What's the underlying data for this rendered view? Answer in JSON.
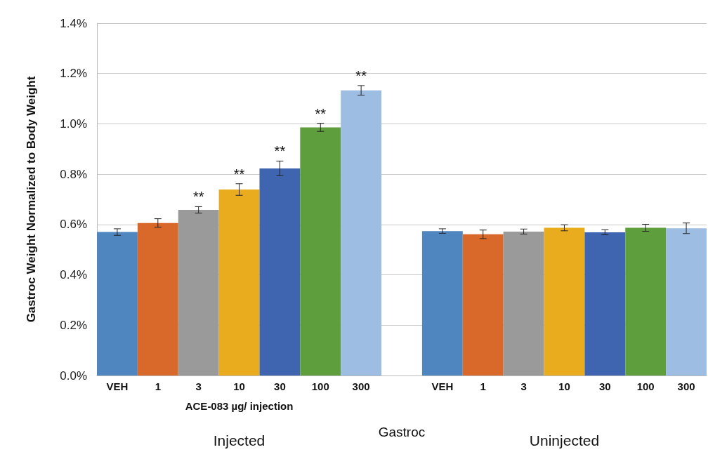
{
  "chart_data": {
    "type": "bar",
    "ylabel": "Gastroc Weight Normalized to Body Weight",
    "xlabel": "ACE-083 µg/ injection",
    "categories": [
      "VEH",
      "1",
      "3",
      "10",
      "30",
      "100",
      "300",
      null,
      "VEH",
      "1",
      "3",
      "10",
      "30",
      "100",
      "300"
    ],
    "values": [
      0.57,
      0.606,
      0.658,
      0.739,
      0.823,
      0.986,
      1.133,
      null,
      0.574,
      0.561,
      0.572,
      0.587,
      0.569,
      0.587,
      0.585
    ],
    "colors": [
      "#4f86c0",
      "#d9692a",
      "#9a9a9a",
      "#e8ac1e",
      "#3f65b0",
      "#5f9e3d",
      "#9ebde3",
      null,
      "#4f86c0",
      "#d9692a",
      "#9a9a9a",
      "#e8ac1e",
      "#3f65b0",
      "#5f9e3d",
      "#9ebde3"
    ],
    "errors": [
      0.013,
      0.017,
      0.013,
      0.023,
      0.029,
      0.016,
      0.019,
      null,
      0.009,
      0.017,
      0.01,
      0.012,
      0.01,
      0.014,
      0.021
    ],
    "value_labels": [
      null,
      null,
      "**",
      "**",
      "**",
      "**",
      "**",
      null,
      null,
      null,
      null,
      null,
      null,
      null,
      null
    ],
    "annotations": [
      "Gastroc",
      "Injected",
      "Uninjected"
    ],
    "ylim": [
      0,
      1.4
    ],
    "yticks": [
      {
        "value": 0,
        "label": "0.0%"
      },
      {
        "value": 0.2,
        "label": "0.2%"
      },
      {
        "value": 0.4,
        "label": "0.4%"
      },
      {
        "value": 0.6,
        "label": "0.6%"
      },
      {
        "value": 0.8,
        "label": "0.8%"
      },
      {
        "value": 1.0,
        "label": "1.0%"
      },
      {
        "value": 1.2,
        "label": "1.2%"
      },
      {
        "value": 1.4,
        "label": "1.4%"
      }
    ],
    "grid": "y"
  }
}
